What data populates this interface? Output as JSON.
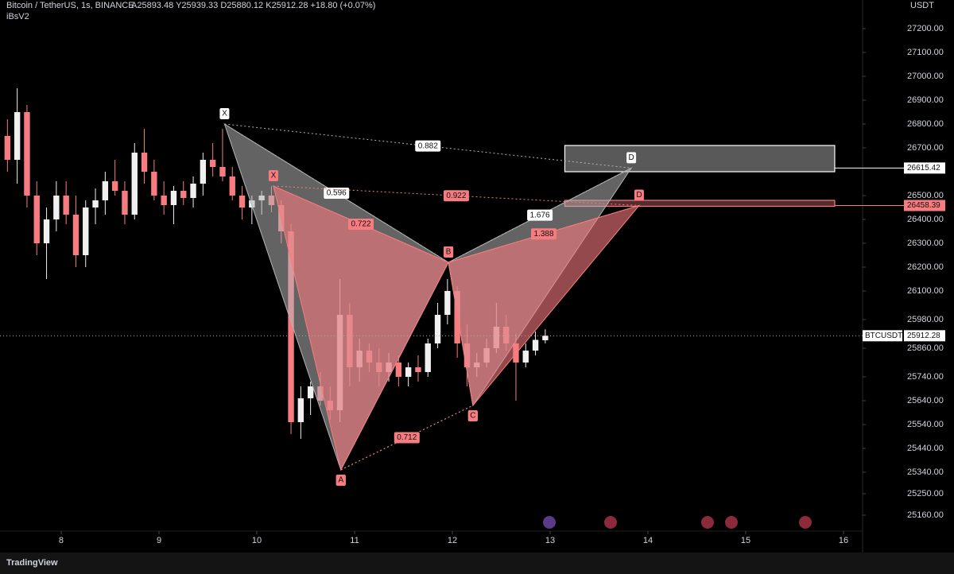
{
  "chart_data": {
    "type": "candlestick",
    "title": "Bitcoin / TetherUS, 1s, BINANCE",
    "subtitle": "A25893.48 Y25939.33 D25880.12 K25912.28 +18.80 (+0.07%)",
    "indicator": "iBsV2",
    "currency": "USDT",
    "brand": "TradingView",
    "up_color": "#f0f0f0",
    "down_color": "#f77c80",
    "x": [
      7.45,
      7.55,
      7.65,
      7.75,
      7.85,
      7.95,
      8.05,
      8.15,
      8.25,
      8.35,
      8.45,
      8.55,
      8.65,
      8.75,
      8.85,
      8.95,
      9.05,
      9.15,
      9.25,
      9.35,
      9.45,
      9.55,
      9.65,
      9.75,
      9.85,
      9.95,
      10.05,
      10.15,
      10.25,
      10.35,
      10.45,
      10.55,
      10.65,
      10.75,
      10.85,
      10.95,
      11.05,
      11.15,
      11.25,
      11.35,
      11.45,
      11.55,
      11.65,
      11.75,
      11.85,
      11.95,
      12.05,
      12.15,
      12.25,
      12.35,
      12.45,
      12.55,
      12.65,
      12.75,
      12.85,
      12.95
    ],
    "open": [
      26750,
      26650,
      26850,
      26500,
      26300,
      26400,
      26500,
      26420,
      26250,
      26450,
      26480,
      26560,
      26520,
      26420,
      26680,
      26600,
      26500,
      26460,
      26520,
      26490,
      26550,
      26650,
      26620,
      26580,
      26500,
      26450,
      26480,
      26500,
      26460,
      26350,
      25550,
      25650,
      25700,
      25640,
      25600,
      26000,
      25780,
      25850,
      25800,
      25760,
      25800,
      25740,
      25780,
      25760,
      25880,
      26000,
      26100,
      25880,
      25780,
      25800,
      25860,
      25950,
      25880,
      25800,
      25850,
      25893.48
    ],
    "high": [
      26820,
      26950,
      26880,
      26560,
      26450,
      26560,
      26560,
      26500,
      26480,
      26530,
      26600,
      26650,
      26560,
      26720,
      26780,
      26650,
      26560,
      26540,
      26560,
      26580,
      26680,
      26720,
      26780,
      26620,
      26540,
      26500,
      26520,
      26540,
      26480,
      26380,
      25700,
      25720,
      25760,
      25700,
      26150,
      26050,
      25900,
      25880,
      25860,
      25840,
      25830,
      25800,
      25830,
      25900,
      26050,
      26150,
      26120,
      25960,
      25840,
      25900,
      26050,
      26000,
      25920,
      25880,
      25930,
      25939.33
    ],
    "low": [
      26600,
      26550,
      26450,
      26250,
      26150,
      26350,
      26380,
      26200,
      26200,
      26380,
      26420,
      26500,
      26380,
      26400,
      26550,
      26480,
      26420,
      26380,
      26460,
      26450,
      26500,
      26580,
      26560,
      26480,
      26400,
      26380,
      26420,
      26430,
      26300,
      25500,
      25480,
      25580,
      25620,
      25560,
      25550,
      25700,
      25720,
      25760,
      25700,
      25720,
      25700,
      25700,
      25720,
      25740,
      25860,
      25960,
      25820,
      25700,
      25740,
      25780,
      25840,
      25850,
      25640,
      25780,
      25830,
      25880.12
    ],
    "close": [
      26650,
      26850,
      26500,
      26300,
      26400,
      26500,
      26420,
      26250,
      26450,
      26480,
      26560,
      26520,
      26420,
      26680,
      26600,
      26500,
      26460,
      26520,
      26490,
      26550,
      26650,
      26620,
      26580,
      26500,
      26450,
      26480,
      26500,
      26460,
      26350,
      25550,
      25650,
      25700,
      25640,
      25600,
      26000,
      25780,
      25850,
      25800,
      25760,
      25800,
      25740,
      25780,
      25760,
      25880,
      26000,
      26100,
      25880,
      25780,
      25800,
      25860,
      25950,
      25880,
      25800,
      25850,
      25895,
      25912.28
    ],
    "xlim": [
      7.374,
      16.195
    ],
    "ylim": [
      25020,
      27320
    ],
    "xticks": [
      8,
      9,
      10,
      11,
      12,
      13,
      14,
      15,
      16
    ],
    "yticks": [
      {
        "value": 27200,
        "label": "27200.00"
      },
      {
        "value": 27100,
        "label": "27100.00"
      },
      {
        "value": 27000,
        "label": "27000.00"
      },
      {
        "value": 26900,
        "label": "26900.00"
      },
      {
        "value": 26800,
        "label": "26800.00"
      },
      {
        "value": 26700,
        "label": "26700.00"
      },
      {
        "value": 26500,
        "label": "26500.00"
      },
      {
        "value": 26400,
        "label": "26400.00"
      },
      {
        "value": 26300,
        "label": "26300.00"
      },
      {
        "value": 26200,
        "label": "26200.00"
      },
      {
        "value": 26100,
        "label": "26100.00"
      },
      {
        "value": 25980,
        "label": "25980.00"
      },
      {
        "value": 25860,
        "label": "25860.00"
      },
      {
        "value": 25740,
        "label": "25740.00"
      },
      {
        "value": 25640,
        "label": "25640.00"
      },
      {
        "value": 25540,
        "label": "25540.00"
      },
      {
        "value": 25440,
        "label": "25440.00"
      },
      {
        "value": 25340,
        "label": "25340.00"
      },
      {
        "value": 25250,
        "label": "25250.00"
      },
      {
        "value": 25160,
        "label": "25160.00"
      }
    ],
    "patterns": [
      {
        "color": "#b4b4b4",
        "labels": [
          "X",
          "A",
          "B",
          "C",
          "D"
        ],
        "x": [
          9.67,
          10.86,
          11.96,
          12.21,
          13.83
        ],
        "y": [
          26800,
          25350,
          26220,
          25620,
          26615.42
        ],
        "ratios": [
          0.596,
          0.882,
          1.676
        ]
      },
      {
        "color": "#f77c80",
        "labels": [
          "X",
          "A",
          "B",
          "C",
          "D"
        ],
        "x": [
          10.17,
          10.86,
          11.96,
          12.21,
          13.91
        ],
        "y": [
          26540,
          25350,
          26220,
          25620,
          26458.39
        ],
        "ratios": [
          0.722,
          0.922,
          1.388,
          0.712
        ]
      }
    ],
    "zones": [
      {
        "color": "#ffffff",
        "x": [
          13.15,
          15.91
        ],
        "y": [
          26600,
          26710
        ]
      },
      {
        "color": "#f77c80",
        "x": [
          13.15,
          15.91
        ],
        "y": [
          26455,
          26480
        ]
      }
    ],
    "price_lines": [
      {
        "color": "#ffffff",
        "value": 26615.42
      },
      {
        "color": "#f77c80",
        "value": 26458.39
      }
    ],
    "last_price_name": "BTCUSDT"
  }
}
